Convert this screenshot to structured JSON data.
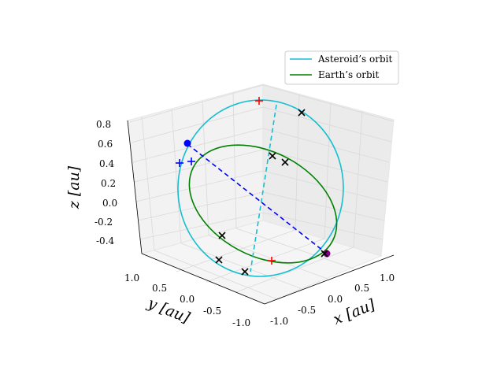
{
  "chart_data": {
    "type": "line",
    "projection": "3d",
    "title": "",
    "axes": {
      "x": {
        "label": "x [au]",
        "range": [
          -1.1,
          1.1
        ],
        "ticks": [
          "-1.0",
          "-0.5",
          "0.0",
          "0.5",
          "1.0"
        ]
      },
      "y": {
        "label": "y [au]",
        "range": [
          -1.1,
          1.1
        ],
        "ticks": [
          "1.0",
          "0.5",
          "0.0",
          "-0.5",
          "-1.0"
        ]
      },
      "z": {
        "label": "z [au]",
        "range": [
          -0.5,
          0.85
        ],
        "ticks": [
          "0.8",
          "0.6",
          "0.4",
          "0.2",
          "0.0",
          "-0.2",
          "-0.4"
        ]
      }
    },
    "grid": true,
    "legend": {
      "placement": "top-right",
      "entries": [
        {
          "label": "Asteroid’s orbit",
          "color": "#17becf"
        },
        {
          "label": "Earth’s orbit",
          "color": "#008000"
        }
      ]
    },
    "series": [
      {
        "name": "Asteroid’s orbit",
        "style": "solid",
        "color": "#17becf"
      },
      {
        "name": "Earth’s orbit",
        "style": "solid",
        "color": "#008000"
      }
    ],
    "lines": [
      {
        "style": "dashed",
        "color": "#17becf",
        "description": "line of apsides"
      },
      {
        "style": "dashed",
        "color": "#0000ff",
        "description": "line of nodes"
      }
    ],
    "markers": {
      "red_plus": 2,
      "blue_plus": 2,
      "blue_dots": 1,
      "purple_dots": 1,
      "black_x": 7
    }
  }
}
